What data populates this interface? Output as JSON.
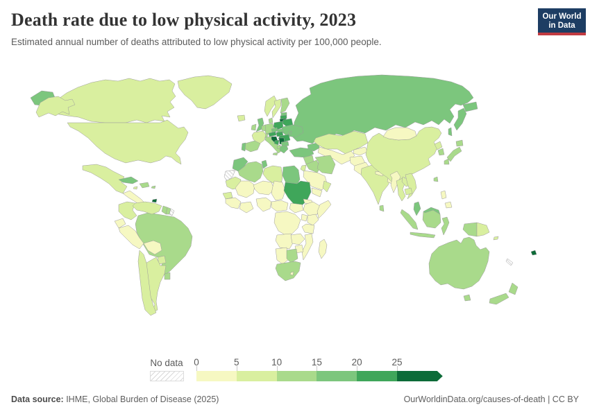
{
  "header": {
    "title": "Death rate due to low physical activity, 2023",
    "subtitle": "Estimated annual number of deaths attributed to low physical activity per 100,000 people."
  },
  "logo": {
    "line1": "Our World",
    "line2": "in Data",
    "bg_color": "#1d3d63",
    "accent_color": "#c13a41"
  },
  "footer": {
    "source_label": "Data source:",
    "source_text": " IHME, Global Burden of Disease (2025)",
    "right_text": "OurWorldinData.org/causes-of-death | CC BY"
  },
  "chart_data": {
    "type": "choropleth",
    "title": "Death rate due to low physical activity, 2023",
    "unit": "deaths per 100,000 people",
    "year": 2023,
    "legend": {
      "no_data_label": "No data",
      "thresholds": [
        0,
        5,
        10,
        15,
        20,
        25
      ],
      "open_ended": true,
      "colors": [
        "#f6f8c2",
        "#d9ef9f",
        "#a9da8b",
        "#7cc67d",
        "#3fa65a",
        "#0c6b38"
      ],
      "position": "bottom"
    },
    "regions": [
      {
        "name": "United States",
        "value": 6
      },
      {
        "name": "Canada",
        "value": 6
      },
      {
        "name": "Greenland",
        "value": 6
      },
      {
        "name": "Mexico",
        "value": 6
      },
      {
        "name": "Central America",
        "value": 3
      },
      {
        "name": "Cuba",
        "value": 16
      },
      {
        "name": "Dominican Republic",
        "value": 13
      },
      {
        "name": "Jamaica",
        "value": 8
      },
      {
        "name": "Puerto Rico",
        "value": 12
      },
      {
        "name": "Trinidad and Tobago",
        "value": 28
      },
      {
        "name": "Colombia",
        "value": 7
      },
      {
        "name": "Venezuela",
        "value": 8
      },
      {
        "name": "Guyana",
        "value": 11
      },
      {
        "name": "Suriname",
        "value": 13
      },
      {
        "name": "French Guiana",
        "value": null
      },
      {
        "name": "Ecuador",
        "value": 4
      },
      {
        "name": "Peru",
        "value": 3
      },
      {
        "name": "Brazil",
        "value": 12
      },
      {
        "name": "Bolivia",
        "value": 4
      },
      {
        "name": "Paraguay",
        "value": 8
      },
      {
        "name": "Chile",
        "value": 5
      },
      {
        "name": "Argentina",
        "value": 9
      },
      {
        "name": "Uruguay",
        "value": 11
      },
      {
        "name": "Iceland",
        "value": 7
      },
      {
        "name": "Norway",
        "value": 7
      },
      {
        "name": "Sweden",
        "value": 8
      },
      {
        "name": "Finland",
        "value": 11
      },
      {
        "name": "Denmark",
        "value": 11
      },
      {
        "name": "United Kingdom",
        "value": 16
      },
      {
        "name": "Ireland",
        "value": 11
      },
      {
        "name": "Netherlands",
        "value": 11
      },
      {
        "name": "Germany",
        "value": 12
      },
      {
        "name": "France",
        "value": 9
      },
      {
        "name": "Spain",
        "value": 12
      },
      {
        "name": "Portugal",
        "value": 16
      },
      {
        "name": "Switzerland",
        "value": 12
      },
      {
        "name": "Italy",
        "value": 13
      },
      {
        "name": "Austria",
        "value": 21
      },
      {
        "name": "Czechia",
        "value": 18
      },
      {
        "name": "Poland",
        "value": 21
      },
      {
        "name": "Estonia",
        "value": 18
      },
      {
        "name": "Latvia",
        "value": 22
      },
      {
        "name": "Lithuania",
        "value": 27
      },
      {
        "name": "Belarus",
        "value": 22
      },
      {
        "name": "Ukraine",
        "value": 16
      },
      {
        "name": "Moldova",
        "value": 18
      },
      {
        "name": "Slovakia",
        "value": 18
      },
      {
        "name": "Hungary",
        "value": 21
      },
      {
        "name": "Romania",
        "value": 20
      },
      {
        "name": "Croatia",
        "value": 28
      },
      {
        "name": "Bosnia and Herzegovina",
        "value": 23
      },
      {
        "name": "Serbia",
        "value": 26
      },
      {
        "name": "Bulgaria",
        "value": 17
      },
      {
        "name": "Albania",
        "value": 12
      },
      {
        "name": "Greece",
        "value": 16
      },
      {
        "name": "Russia",
        "value": 16
      },
      {
        "name": "Morocco",
        "value": 16
      },
      {
        "name": "Western Sahara",
        "value": null
      },
      {
        "name": "Algeria",
        "value": 12
      },
      {
        "name": "Tunisia",
        "value": 15
      },
      {
        "name": "Libya",
        "value": 9
      },
      {
        "name": "Egypt",
        "value": 16
      },
      {
        "name": "Mauritania",
        "value": 6
      },
      {
        "name": "Senegal",
        "value": 6
      },
      {
        "name": "Mali",
        "value": 3
      },
      {
        "name": "Niger",
        "value": 3
      },
      {
        "name": "Chad",
        "value": 3
      },
      {
        "name": "Guinea",
        "value": 3
      },
      {
        "name": "Ivory Coast",
        "value": 3
      },
      {
        "name": "Nigeria",
        "value": 3
      },
      {
        "name": "Cameroon",
        "value": 3
      },
      {
        "name": "Sudan",
        "value": 24
      },
      {
        "name": "South Sudan",
        "value": 3
      },
      {
        "name": "Eritrea",
        "value": 3
      },
      {
        "name": "Ethiopia",
        "value": 3
      },
      {
        "name": "Somalia",
        "value": 4
      },
      {
        "name": "Kenya",
        "value": 3
      },
      {
        "name": "Uganda",
        "value": 3
      },
      {
        "name": "Democratic Republic of Congo",
        "value": 2
      },
      {
        "name": "Tanzania",
        "value": 3
      },
      {
        "name": "Angola",
        "value": 3
      },
      {
        "name": "Zambia",
        "value": 3
      },
      {
        "name": "Mozambique",
        "value": 3
      },
      {
        "name": "Zimbabwe",
        "value": 4
      },
      {
        "name": "Namibia",
        "value": 4
      },
      {
        "name": "Botswana",
        "value": 10
      },
      {
        "name": "South Africa",
        "value": 14
      },
      {
        "name": "Lesotho",
        "value": 4
      },
      {
        "name": "Madagascar",
        "value": 3
      },
      {
        "name": "Turkey",
        "value": 16
      },
      {
        "name": "Azerbaijan",
        "value": 18
      },
      {
        "name": "Syria",
        "value": 11
      },
      {
        "name": "Iraq",
        "value": 12
      },
      {
        "name": "Iran",
        "value": 12
      },
      {
        "name": "Jordan",
        "value": 7
      },
      {
        "name": "Saudi Arabia",
        "value": 4
      },
      {
        "name": "Yemen",
        "value": 3
      },
      {
        "name": "Oman",
        "value": 8
      },
      {
        "name": "Kazakhstan",
        "value": 5
      },
      {
        "name": "Uzbekistan",
        "value": 4
      },
      {
        "name": "Kyrgyzstan",
        "value": 4
      },
      {
        "name": "Afghanistan",
        "value": 3
      },
      {
        "name": "Pakistan",
        "value": 4
      },
      {
        "name": "India",
        "value": 7
      },
      {
        "name": "Nepal",
        "value": 4
      },
      {
        "name": "Bhutan",
        "value": 15
      },
      {
        "name": "Bangladesh",
        "value": 4
      },
      {
        "name": "Sri Lanka",
        "value": 11
      },
      {
        "name": "Myanmar",
        "value": 4
      },
      {
        "name": "Thailand",
        "value": 9
      },
      {
        "name": "Laos",
        "value": 6
      },
      {
        "name": "Vietnam",
        "value": 9
      },
      {
        "name": "Cambodia",
        "value": 6
      },
      {
        "name": "China",
        "value": 7
      },
      {
        "name": "Mongolia",
        "value": 3
      },
      {
        "name": "North Korea",
        "value": 9
      },
      {
        "name": "South Korea",
        "value": 13
      },
      {
        "name": "Japan",
        "value": 12
      },
      {
        "name": "Taiwan",
        "value": 12
      },
      {
        "name": "Philippines",
        "value": 4
      },
      {
        "name": "Malaysia",
        "value": 15
      },
      {
        "name": "Indonesia",
        "value": 10
      },
      {
        "name": "Papua New Guinea",
        "value": 7
      },
      {
        "name": "Solomon Islands",
        "value": 7
      },
      {
        "name": "Fiji",
        "value": 30
      },
      {
        "name": "New Caledonia",
        "value": null
      },
      {
        "name": "Australia",
        "value": 11
      },
      {
        "name": "New Zealand",
        "value": 12
      }
    ]
  }
}
